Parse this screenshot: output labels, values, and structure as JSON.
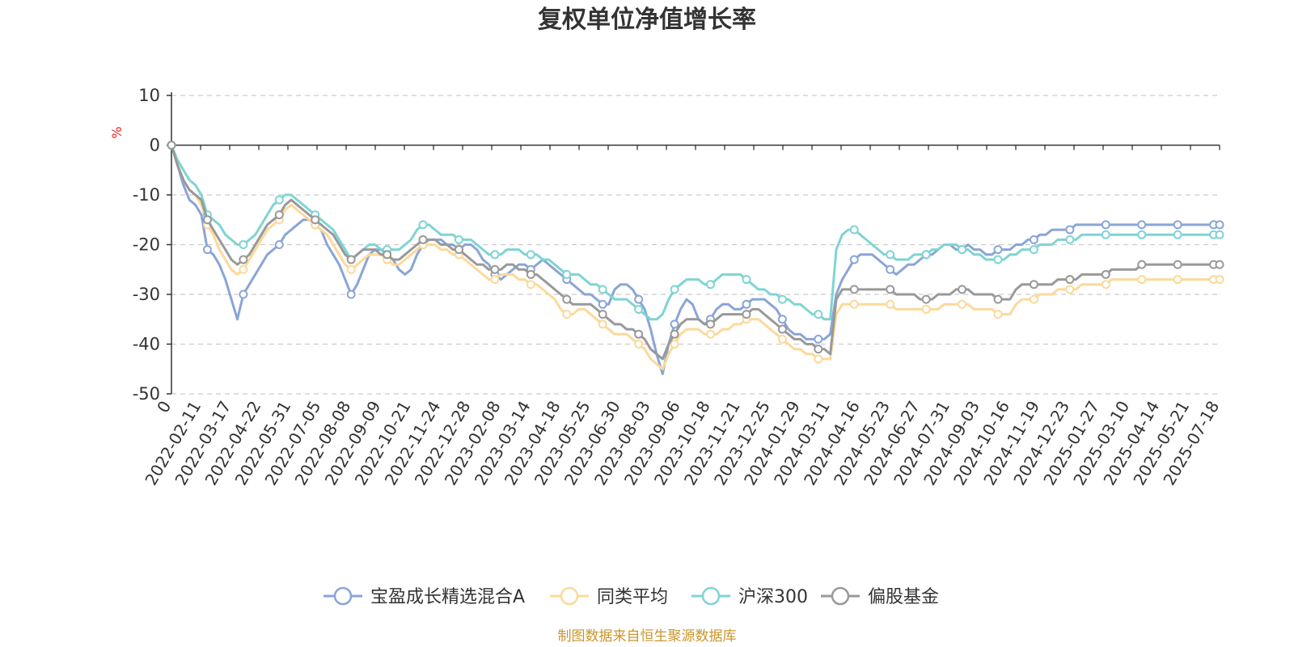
{
  "chart_data": {
    "type": "line",
    "title": "复权单位净值增长率",
    "ylabel": "%",
    "ylim": [
      -50,
      10
    ],
    "yticks": [
      10,
      0,
      -10,
      -20,
      -30,
      -40,
      -50
    ],
    "xticks": [
      "0",
      "2022-02-11",
      "2022-03-17",
      "2022-04-22",
      "2022-05-31",
      "2022-07-05",
      "2022-08-08",
      "2022-09-09",
      "2022-10-21",
      "2022-11-24",
      "2022-12-28",
      "2023-02-08",
      "2023-03-14",
      "2023-04-18",
      "2023-05-25",
      "2023-06-30",
      "2023-08-03",
      "2023-09-06",
      "2023-10-18",
      "2023-11-21",
      "2023-12-25",
      "2024-01-29",
      "2024-03-11",
      "2024-04-16",
      "2024-05-23",
      "2024-06-27",
      "2024-07-31",
      "2024-09-03",
      "2024-10-16",
      "2024-11-19",
      "2024-12-23",
      "2025-01-27",
      "2025-03-10",
      "2025-04-14",
      "2025-05-21",
      "2025-07-18"
    ],
    "grid": "dashed-horizontal",
    "legend_position": "bottom",
    "x_points": [
      0,
      10,
      20,
      30,
      40,
      50,
      60,
      70,
      80,
      90,
      100,
      110,
      120,
      130,
      140,
      150,
      160,
      170,
      180,
      190,
      200,
      210,
      220,
      230,
      240,
      250,
      260,
      270,
      280,
      290,
      300,
      310,
      320,
      330,
      340,
      350,
      360,
      370,
      380,
      390,
      400,
      410,
      420,
      430,
      440,
      450,
      460,
      470,
      480,
      490,
      500,
      510,
      520,
      530,
      540,
      550,
      560,
      570,
      580,
      590,
      600,
      610,
      620,
      630,
      640,
      650,
      660,
      670,
      680,
      690,
      700,
      710,
      720,
      730,
      740,
      750,
      760,
      770,
      780,
      790,
      800,
      810,
      820,
      830,
      840,
      850,
      860,
      870,
      880,
      890,
      900,
      910,
      920,
      930,
      940,
      950,
      960,
      970,
      980,
      990,
      1000,
      1010,
      1020,
      1030,
      1040,
      1050,
      1060,
      1070,
      1080,
      1090,
      1100,
      1110,
      1120,
      1130,
      1140,
      1150,
      1160,
      1170,
      1180,
      1190,
      1200,
      1210,
      1220,
      1230,
      1240,
      1250,
      1260,
      1270,
      1280,
      1290,
      1300,
      1310,
      1320,
      1330,
      1340,
      1350,
      1360,
      1370,
      1380,
      1390,
      1400,
      1410,
      1420,
      1430,
      1440,
      1450,
      1460,
      1470,
      1480,
      1490,
      1500,
      1510,
      1520,
      1530,
      1540,
      1550,
      1560,
      1570,
      1580,
      1590,
      1600,
      1610,
      1620,
      1630,
      1640,
      1650,
      1660,
      1670,
      1680,
      1690,
      1700,
      1710,
      1720,
      1730,
      1740,
      1750
    ],
    "series": [
      {
        "name": "宝盈成长精选混合A",
        "color": "#8aa5d6",
        "values": [
          0,
          -4,
          -8,
          -11,
          -12,
          -14,
          -21,
          -22,
          -24,
          -27,
          -31,
          -35,
          -30,
          -28,
          -26,
          -24,
          -22,
          -21,
          -20,
          -18,
          -17,
          -16,
          -15,
          -15,
          -16,
          -17,
          -20,
          -22,
          -24,
          -27,
          -30,
          -28,
          -25,
          -22,
          -21,
          -21,
          -22,
          -23,
          -25,
          -26,
          -25,
          -22,
          -20,
          -19,
          -19,
          -19,
          -20,
          -20,
          -21,
          -20,
          -20,
          -21,
          -23,
          -24,
          -26,
          -27,
          -26,
          -25,
          -24,
          -24,
          -25,
          -24,
          -23,
          -24,
          -25,
          -26,
          -27,
          -28,
          -29,
          -30,
          -30,
          -31,
          -32,
          -32,
          -29,
          -28,
          -28,
          -29,
          -31,
          -33,
          -37,
          -42,
          -46,
          -40,
          -36,
          -33,
          -31,
          -32,
          -35,
          -36,
          -35,
          -33,
          -32,
          -32,
          -33,
          -33,
          -32,
          -31,
          -31,
          -31,
          -32,
          -33,
          -35,
          -37,
          -38,
          -38,
          -39,
          -39,
          -39,
          -39,
          -38,
          -30,
          -27,
          -25,
          -23,
          -22,
          -22,
          -22,
          -23,
          -24,
          -25,
          -26,
          -25,
          -24,
          -24,
          -23,
          -22,
          -22,
          -21,
          -20,
          -20,
          -21,
          -21,
          -20,
          -21,
          -21,
          -22,
          -22,
          -21,
          -21,
          -21,
          -20,
          -20,
          -19,
          -19,
          -18,
          -18,
          -17,
          -17,
          -17,
          -17,
          -16,
          -16,
          -16,
          -16,
          -16,
          -16,
          -16,
          -16,
          -16,
          -16,
          -16,
          -16,
          -16,
          -16,
          -16,
          -16,
          -16,
          -16,
          -16,
          -16,
          -16,
          -16,
          -16,
          -16,
          -16
        ]
      },
      {
        "name": "同类平均",
        "color": "#fcd99a",
        "values": [
          0,
          -4,
          -7,
          -9,
          -10,
          -12,
          -16,
          -18,
          -21,
          -23,
          -25,
          -26,
          -25,
          -23,
          -21,
          -19,
          -17,
          -16,
          -15,
          -13,
          -12,
          -13,
          -14,
          -15,
          -16,
          -17,
          -18,
          -20,
          -22,
          -24,
          -25,
          -24,
          -23,
          -22,
          -22,
          -22,
          -23,
          -24,
          -24,
          -23,
          -22,
          -21,
          -20,
          -20,
          -20,
          -21,
          -21,
          -22,
          -22,
          -23,
          -24,
          -25,
          -26,
          -27,
          -27,
          -26,
          -26,
          -26,
          -27,
          -27,
          -28,
          -28,
          -29,
          -30,
          -31,
          -33,
          -34,
          -34,
          -33,
          -33,
          -34,
          -35,
          -36,
          -37,
          -38,
          -38,
          -38,
          -39,
          -40,
          -41,
          -43,
          -44,
          -45,
          -42,
          -40,
          -38,
          -37,
          -37,
          -37,
          -38,
          -38,
          -38,
          -37,
          -37,
          -36,
          -36,
          -35,
          -35,
          -35,
          -36,
          -37,
          -38,
          -39,
          -40,
          -41,
          -41,
          -42,
          -42,
          -43,
          -43,
          -43,
          -34,
          -32,
          -32,
          -32,
          -32,
          -32,
          -32,
          -32,
          -32,
          -32,
          -33,
          -33,
          -33,
          -33,
          -33,
          -33,
          -33,
          -33,
          -32,
          -32,
          -32,
          -32,
          -32,
          -33,
          -33,
          -33,
          -33,
          -34,
          -34,
          -34,
          -32,
          -31,
          -31,
          -31,
          -30,
          -30,
          -30,
          -29,
          -29,
          -29,
          -29,
          -28,
          -28,
          -28,
          -28,
          -28,
          -27,
          -27,
          -27,
          -27,
          -27,
          -27,
          -27,
          -27,
          -27,
          -27,
          -27,
          -27,
          -27,
          -27,
          -27,
          -27,
          -27,
          -27,
          -27
        ]
      },
      {
        "name": "沪深300",
        "color": "#7fd4d4",
        "values": [
          0,
          -3,
          -5,
          -7,
          -8,
          -10,
          -14,
          -15,
          -16,
          -18,
          -19,
          -20,
          -20,
          -19,
          -18,
          -16,
          -14,
          -12,
          -11,
          -10,
          -10,
          -11,
          -12,
          -13,
          -14,
          -15,
          -16,
          -17,
          -19,
          -21,
          -23,
          -22,
          -21,
          -20,
          -20,
          -21,
          -21,
          -21,
          -21,
          -20,
          -19,
          -17,
          -16,
          -16,
          -17,
          -18,
          -18,
          -18,
          -19,
          -19,
          -19,
          -20,
          -21,
          -22,
          -22,
          -22,
          -21,
          -21,
          -21,
          -22,
          -22,
          -22,
          -23,
          -23,
          -24,
          -25,
          -26,
          -26,
          -26,
          -27,
          -28,
          -28,
          -29,
          -30,
          -31,
          -31,
          -31,
          -32,
          -33,
          -34,
          -35,
          -35,
          -34,
          -31,
          -29,
          -28,
          -27,
          -27,
          -27,
          -28,
          -28,
          -27,
          -26,
          -26,
          -26,
          -26,
          -27,
          -28,
          -29,
          -29,
          -30,
          -30,
          -31,
          -31,
          -32,
          -32,
          -33,
          -34,
          -34,
          -35,
          -35,
          -21,
          -18,
          -17,
          -17,
          -18,
          -19,
          -20,
          -21,
          -22,
          -22,
          -23,
          -23,
          -23,
          -22,
          -22,
          -22,
          -21,
          -21,
          -20,
          -20,
          -20,
          -21,
          -21,
          -22,
          -22,
          -23,
          -23,
          -23,
          -23,
          -22,
          -22,
          -21,
          -21,
          -21,
          -20,
          -20,
          -20,
          -19,
          -19,
          -19,
          -19,
          -18,
          -18,
          -18,
          -18,
          -18,
          -18,
          -18,
          -18,
          -18,
          -18,
          -18,
          -18,
          -18,
          -18,
          -18,
          -18,
          -18,
          -18,
          -18,
          -18,
          -18,
          -18,
          -18,
          -18
        ]
      },
      {
        "name": "偏股基金",
        "color": "#999999",
        "values": [
          0,
          -4,
          -7,
          -9,
          -10,
          -11,
          -15,
          -17,
          -19,
          -21,
          -23,
          -24,
          -23,
          -22,
          -20,
          -18,
          -16,
          -15,
          -14,
          -12,
          -11,
          -12,
          -13,
          -14,
          -15,
          -16,
          -17,
          -18,
          -20,
          -22,
          -23,
          -22,
          -21,
          -21,
          -21,
          -22,
          -22,
          -23,
          -23,
          -22,
          -21,
          -20,
          -19,
          -19,
          -19,
          -20,
          -20,
          -21,
          -21,
          -22,
          -23,
          -24,
          -24,
          -25,
          -25,
          -25,
          -24,
          -24,
          -25,
          -25,
          -26,
          -26,
          -27,
          -28,
          -29,
          -30,
          -31,
          -32,
          -32,
          -32,
          -32,
          -33,
          -34,
          -35,
          -36,
          -36,
          -37,
          -37,
          -38,
          -39,
          -41,
          -42,
          -43,
          -40,
          -38,
          -36,
          -35,
          -35,
          -35,
          -36,
          -36,
          -35,
          -34,
          -34,
          -34,
          -34,
          -34,
          -33,
          -33,
          -34,
          -35,
          -36,
          -37,
          -38,
          -39,
          -39,
          -40,
          -40,
          -41,
          -41,
          -42,
          -31,
          -29,
          -29,
          -29,
          -29,
          -29,
          -29,
          -29,
          -29,
          -29,
          -30,
          -30,
          -30,
          -30,
          -31,
          -31,
          -31,
          -30,
          -30,
          -30,
          -29,
          -29,
          -29,
          -30,
          -30,
          -30,
          -30,
          -31,
          -31,
          -31,
          -29,
          -28,
          -28,
          -28,
          -28,
          -28,
          -28,
          -27,
          -27,
          -27,
          -27,
          -26,
          -26,
          -26,
          -26,
          -26,
          -25,
          -25,
          -25,
          -25,
          -25,
          -24,
          -24,
          -24,
          -24,
          -24,
          -24,
          -24,
          -24,
          -24,
          -24,
          -24,
          -24,
          -24,
          -24
        ]
      }
    ]
  },
  "footer": {
    "source": "制图数据来自恒生聚源数据库"
  }
}
